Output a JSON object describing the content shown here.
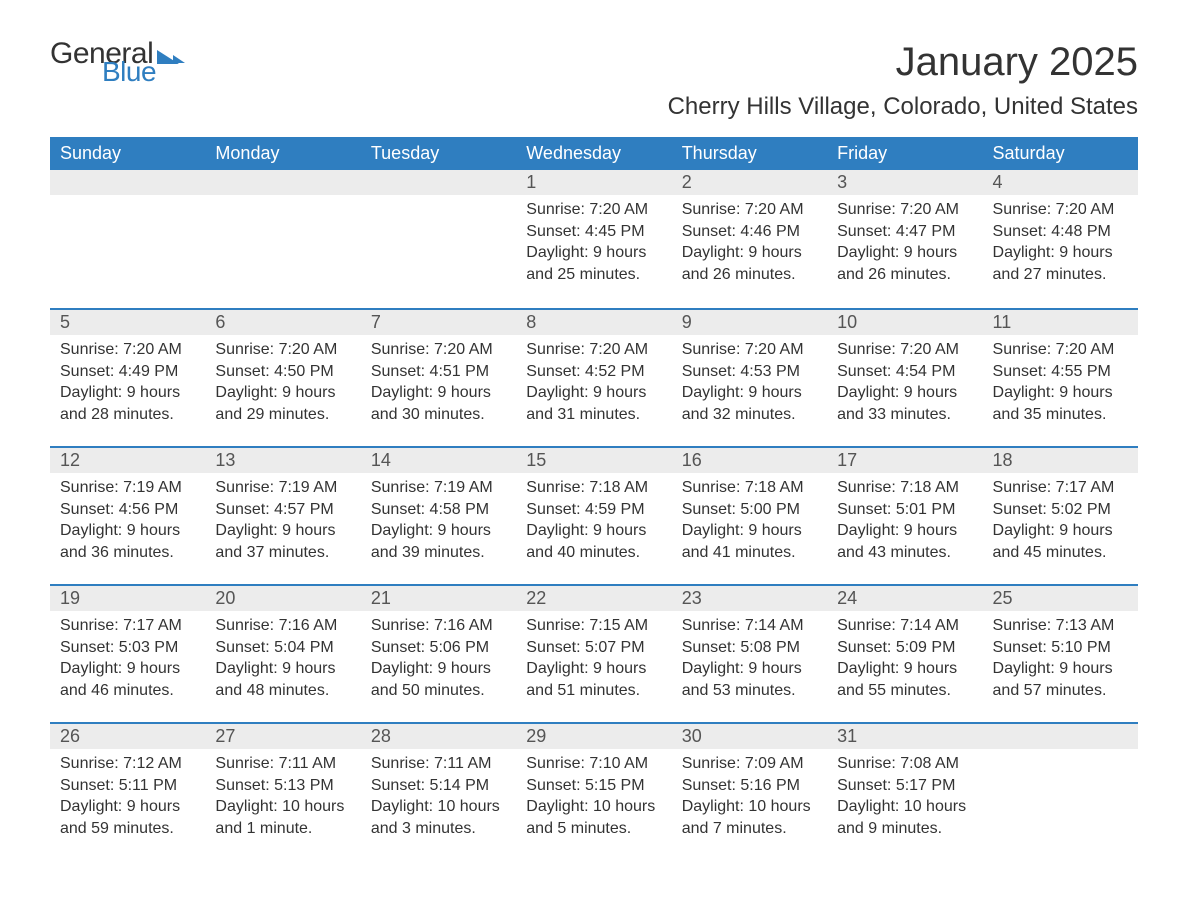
{
  "brand": {
    "part1": "General",
    "part2": "Blue"
  },
  "title": "January 2025",
  "location": "Cherry Hills Village, Colorado, United States",
  "colors": {
    "header_bg": "#2f7ec0",
    "header_text": "#ffffff",
    "daynum_bg": "#ececec",
    "row_border": "#2f7ec0",
    "text": "#333333",
    "background": "#ffffff"
  },
  "day_labels": [
    "Sunday",
    "Monday",
    "Tuesday",
    "Wednesday",
    "Thursday",
    "Friday",
    "Saturday"
  ],
  "weeks": [
    [
      {
        "blank": true
      },
      {
        "blank": true
      },
      {
        "blank": true
      },
      {
        "n": "1",
        "sunrise": "Sunrise: 7:20 AM",
        "sunset": "Sunset: 4:45 PM",
        "daylight": "Daylight: 9 hours and 25 minutes."
      },
      {
        "n": "2",
        "sunrise": "Sunrise: 7:20 AM",
        "sunset": "Sunset: 4:46 PM",
        "daylight": "Daylight: 9 hours and 26 minutes."
      },
      {
        "n": "3",
        "sunrise": "Sunrise: 7:20 AM",
        "sunset": "Sunset: 4:47 PM",
        "daylight": "Daylight: 9 hours and 26 minutes."
      },
      {
        "n": "4",
        "sunrise": "Sunrise: 7:20 AM",
        "sunset": "Sunset: 4:48 PM",
        "daylight": "Daylight: 9 hours and 27 minutes."
      }
    ],
    [
      {
        "n": "5",
        "sunrise": "Sunrise: 7:20 AM",
        "sunset": "Sunset: 4:49 PM",
        "daylight": "Daylight: 9 hours and 28 minutes."
      },
      {
        "n": "6",
        "sunrise": "Sunrise: 7:20 AM",
        "sunset": "Sunset: 4:50 PM",
        "daylight": "Daylight: 9 hours and 29 minutes."
      },
      {
        "n": "7",
        "sunrise": "Sunrise: 7:20 AM",
        "sunset": "Sunset: 4:51 PM",
        "daylight": "Daylight: 9 hours and 30 minutes."
      },
      {
        "n": "8",
        "sunrise": "Sunrise: 7:20 AM",
        "sunset": "Sunset: 4:52 PM",
        "daylight": "Daylight: 9 hours and 31 minutes."
      },
      {
        "n": "9",
        "sunrise": "Sunrise: 7:20 AM",
        "sunset": "Sunset: 4:53 PM",
        "daylight": "Daylight: 9 hours and 32 minutes."
      },
      {
        "n": "10",
        "sunrise": "Sunrise: 7:20 AM",
        "sunset": "Sunset: 4:54 PM",
        "daylight": "Daylight: 9 hours and 33 minutes."
      },
      {
        "n": "11",
        "sunrise": "Sunrise: 7:20 AM",
        "sunset": "Sunset: 4:55 PM",
        "daylight": "Daylight: 9 hours and 35 minutes."
      }
    ],
    [
      {
        "n": "12",
        "sunrise": "Sunrise: 7:19 AM",
        "sunset": "Sunset: 4:56 PM",
        "daylight": "Daylight: 9 hours and 36 minutes."
      },
      {
        "n": "13",
        "sunrise": "Sunrise: 7:19 AM",
        "sunset": "Sunset: 4:57 PM",
        "daylight": "Daylight: 9 hours and 37 minutes."
      },
      {
        "n": "14",
        "sunrise": "Sunrise: 7:19 AM",
        "sunset": "Sunset: 4:58 PM",
        "daylight": "Daylight: 9 hours and 39 minutes."
      },
      {
        "n": "15",
        "sunrise": "Sunrise: 7:18 AM",
        "sunset": "Sunset: 4:59 PM",
        "daylight": "Daylight: 9 hours and 40 minutes."
      },
      {
        "n": "16",
        "sunrise": "Sunrise: 7:18 AM",
        "sunset": "Sunset: 5:00 PM",
        "daylight": "Daylight: 9 hours and 41 minutes."
      },
      {
        "n": "17",
        "sunrise": "Sunrise: 7:18 AM",
        "sunset": "Sunset: 5:01 PM",
        "daylight": "Daylight: 9 hours and 43 minutes."
      },
      {
        "n": "18",
        "sunrise": "Sunrise: 7:17 AM",
        "sunset": "Sunset: 5:02 PM",
        "daylight": "Daylight: 9 hours and 45 minutes."
      }
    ],
    [
      {
        "n": "19",
        "sunrise": "Sunrise: 7:17 AM",
        "sunset": "Sunset: 5:03 PM",
        "daylight": "Daylight: 9 hours and 46 minutes."
      },
      {
        "n": "20",
        "sunrise": "Sunrise: 7:16 AM",
        "sunset": "Sunset: 5:04 PM",
        "daylight": "Daylight: 9 hours and 48 minutes."
      },
      {
        "n": "21",
        "sunrise": "Sunrise: 7:16 AM",
        "sunset": "Sunset: 5:06 PM",
        "daylight": "Daylight: 9 hours and 50 minutes."
      },
      {
        "n": "22",
        "sunrise": "Sunrise: 7:15 AM",
        "sunset": "Sunset: 5:07 PM",
        "daylight": "Daylight: 9 hours and 51 minutes."
      },
      {
        "n": "23",
        "sunrise": "Sunrise: 7:14 AM",
        "sunset": "Sunset: 5:08 PM",
        "daylight": "Daylight: 9 hours and 53 minutes."
      },
      {
        "n": "24",
        "sunrise": "Sunrise: 7:14 AM",
        "sunset": "Sunset: 5:09 PM",
        "daylight": "Daylight: 9 hours and 55 minutes."
      },
      {
        "n": "25",
        "sunrise": "Sunrise: 7:13 AM",
        "sunset": "Sunset: 5:10 PM",
        "daylight": "Daylight: 9 hours and 57 minutes."
      }
    ],
    [
      {
        "n": "26",
        "sunrise": "Sunrise: 7:12 AM",
        "sunset": "Sunset: 5:11 PM",
        "daylight": "Daylight: 9 hours and 59 minutes."
      },
      {
        "n": "27",
        "sunrise": "Sunrise: 7:11 AM",
        "sunset": "Sunset: 5:13 PM",
        "daylight": "Daylight: 10 hours and 1 minute."
      },
      {
        "n": "28",
        "sunrise": "Sunrise: 7:11 AM",
        "sunset": "Sunset: 5:14 PM",
        "daylight": "Daylight: 10 hours and 3 minutes."
      },
      {
        "n": "29",
        "sunrise": "Sunrise: 7:10 AM",
        "sunset": "Sunset: 5:15 PM",
        "daylight": "Daylight: 10 hours and 5 minutes."
      },
      {
        "n": "30",
        "sunrise": "Sunrise: 7:09 AM",
        "sunset": "Sunset: 5:16 PM",
        "daylight": "Daylight: 10 hours and 7 minutes."
      },
      {
        "n": "31",
        "sunrise": "Sunrise: 7:08 AM",
        "sunset": "Sunset: 5:17 PM",
        "daylight": "Daylight: 10 hours and 9 minutes."
      },
      {
        "blank": true
      }
    ]
  ]
}
